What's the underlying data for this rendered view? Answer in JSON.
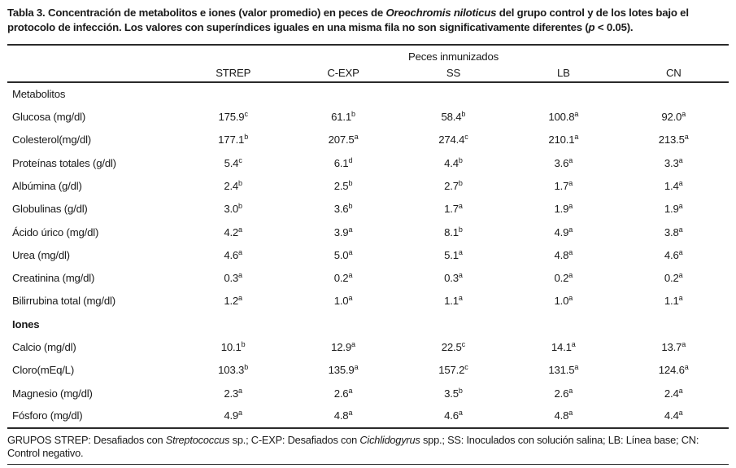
{
  "caption": {
    "parts": [
      {
        "text": "Tabla 3. Concentración de metabolitos e iones (valor promedio) en peces de ",
        "style": "bold"
      },
      {
        "text": "Oreochromis niloticus",
        "style": "bold-italic"
      },
      {
        "text": " del grupo control y de los lotes bajo el protocolo de infección. Los valores con superíndices iguales en una misma fila no son significativamente diferentes (",
        "style": "bold"
      },
      {
        "text": "p",
        "style": "bold-italic"
      },
      {
        "text": " < 0.05).",
        "style": "bold"
      }
    ]
  },
  "table": {
    "spanner": "Peces inmunizados",
    "columns": [
      "STREP",
      "C-EXP",
      "SS",
      "LB",
      "CN"
    ],
    "rows": [
      {
        "type": "section",
        "label": "Metabolitos",
        "bold": false
      },
      {
        "type": "data",
        "label": "Glucosa (mg/dl)",
        "values": [
          {
            "v": "175.9",
            "s": "c"
          },
          {
            "v": "61.1",
            "s": "b"
          },
          {
            "v": "58.4",
            "s": "b"
          },
          {
            "v": "100.8",
            "s": "a"
          },
          {
            "v": "92.0",
            "s": "a"
          }
        ]
      },
      {
        "type": "data",
        "label": "Colesterol(mg/dl)",
        "values": [
          {
            "v": "177.1",
            "s": "b"
          },
          {
            "v": "207.5",
            "s": "a"
          },
          {
            "v": "274.4",
            "s": "c"
          },
          {
            "v": "210.1",
            "s": "a"
          },
          {
            "v": "213.5",
            "s": "a"
          }
        ]
      },
      {
        "type": "data",
        "label": "Proteínas totales (g/dl)",
        "values": [
          {
            "v": "5.4",
            "s": "c"
          },
          {
            "v": "6.1",
            "s": "d"
          },
          {
            "v": "4.4",
            "s": "b"
          },
          {
            "v": "3.6",
            "s": "a"
          },
          {
            "v": "3.3",
            "s": "a"
          }
        ]
      },
      {
        "type": "data",
        "label": "Albúmina (g/dl)",
        "values": [
          {
            "v": "2.4",
            "s": "b"
          },
          {
            "v": "2.5",
            "s": "b"
          },
          {
            "v": "2.7",
            "s": "b"
          },
          {
            "v": "1.7",
            "s": "a"
          },
          {
            "v": "1.4",
            "s": "a"
          }
        ]
      },
      {
        "type": "data",
        "label": "Globulinas (g/dl)",
        "values": [
          {
            "v": "3.0",
            "s": "b"
          },
          {
            "v": "3.6",
            "s": "b"
          },
          {
            "v": "1.7",
            "s": "a"
          },
          {
            "v": "1.9",
            "s": "a"
          },
          {
            "v": "1.9",
            "s": "a"
          }
        ]
      },
      {
        "type": "data",
        "label": "Ácido úrico (mg/dl)",
        "values": [
          {
            "v": "4.2",
            "s": "a"
          },
          {
            "v": "3.9",
            "s": "a"
          },
          {
            "v": "8.1",
            "s": "b"
          },
          {
            "v": "4.9",
            "s": "a"
          },
          {
            "v": "3.8",
            "s": "a"
          }
        ]
      },
      {
        "type": "data",
        "label": "Urea (mg/dl)",
        "values": [
          {
            "v": "4.6",
            "s": "a"
          },
          {
            "v": "5.0",
            "s": "a"
          },
          {
            "v": "5.1",
            "s": "a"
          },
          {
            "v": "4.8",
            "s": "a"
          },
          {
            "v": "4.6",
            "s": "a"
          }
        ]
      },
      {
        "type": "data",
        "label": "Creatinina (mg/dl)",
        "values": [
          {
            "v": "0.3",
            "s": "a"
          },
          {
            "v": "0.2",
            "s": "a"
          },
          {
            "v": "0.3",
            "s": "a"
          },
          {
            "v": "0.2",
            "s": "a"
          },
          {
            "v": "0.2",
            "s": "a"
          }
        ]
      },
      {
        "type": "data",
        "label": "Bilirrubina total (mg/dl)",
        "values": [
          {
            "v": "1.2",
            "s": "a"
          },
          {
            "v": "1.0",
            "s": "a"
          },
          {
            "v": "1.1",
            "s": "a"
          },
          {
            "v": "1.0",
            "s": "a"
          },
          {
            "v": "1.1",
            "s": "a"
          }
        ]
      },
      {
        "type": "section",
        "label": "Iones",
        "bold": true
      },
      {
        "type": "data",
        "label": "Calcio (mg/dl)",
        "values": [
          {
            "v": "10.1",
            "s": "b"
          },
          {
            "v": "12.9",
            "s": "a"
          },
          {
            "v": "22.5",
            "s": "c"
          },
          {
            "v": "14.1",
            "s": "a"
          },
          {
            "v": "13.7",
            "s": "a"
          }
        ]
      },
      {
        "type": "data",
        "label": "Cloro(mEq/L)",
        "values": [
          {
            "v": "103.3",
            "s": "b"
          },
          {
            "v": "135.9",
            "s": "a"
          },
          {
            "v": "157.2",
            "s": "c"
          },
          {
            "v": "131.5",
            "s": "a"
          },
          {
            "v": "124.6",
            "s": "a"
          }
        ]
      },
      {
        "type": "data",
        "label": "Magnesio (mg/dl)",
        "values": [
          {
            "v": "2.3",
            "s": "a"
          },
          {
            "v": "2.6",
            "s": "a"
          },
          {
            "v": "3.5",
            "s": "b"
          },
          {
            "v": "2.6",
            "s": "a"
          },
          {
            "v": "2.4",
            "s": "a"
          }
        ]
      },
      {
        "type": "data",
        "label": "Fósforo (mg/dl)",
        "values": [
          {
            "v": "4.9",
            "s": "a"
          },
          {
            "v": "4.8",
            "s": "a"
          },
          {
            "v": "4.6",
            "s": "a"
          },
          {
            "v": "4.8",
            "s": "a"
          },
          {
            "v": "4.4",
            "s": "a"
          }
        ]
      }
    ]
  },
  "footnote": {
    "parts": [
      {
        "text": "GRUPOS STREP: Desafiados con ",
        "style": "normal"
      },
      {
        "text": "Streptococcus",
        "style": "italic"
      },
      {
        "text": " sp.; C-EXP: Desafiados con ",
        "style": "normal"
      },
      {
        "text": "Cichlidogyrus",
        "style": "italic"
      },
      {
        "text": " spp.; SS: Inoculados con solución salina; LB: Línea base; CN: Control negativo.",
        "style": "normal"
      }
    ]
  },
  "colors": {
    "background": "#ffffff",
    "text": "#1a1a1a",
    "rule": "#2a2a2a"
  }
}
